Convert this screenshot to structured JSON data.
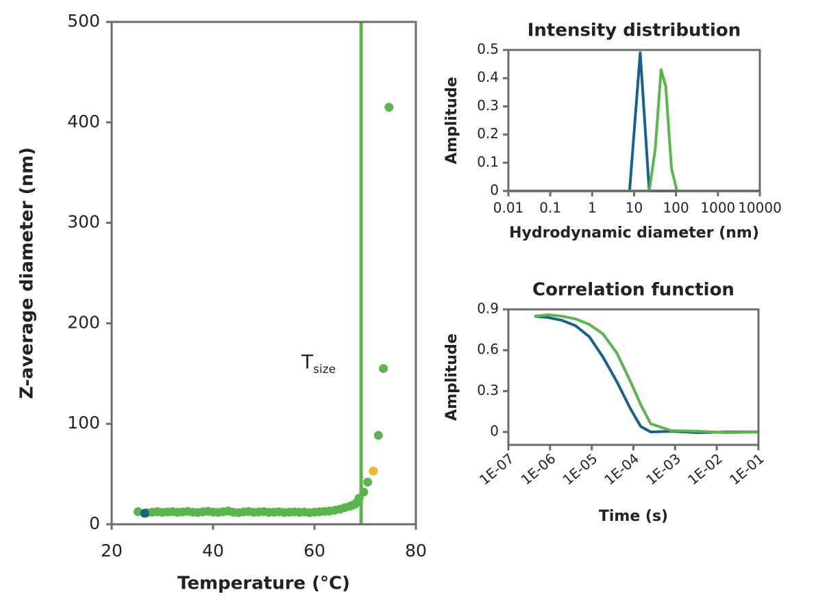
{
  "chart_data": [
    {
      "type": "scatter",
      "xlabel": "Temperature (°C)",
      "ylabel": "Z-average diameter (nm)",
      "xlim": [
        20,
        80
      ],
      "xticks": [
        20,
        40,
        60,
        80
      ],
      "ylim": [
        0,
        500
      ],
      "yticks": [
        0,
        100,
        200,
        300,
        400,
        500
      ],
      "axis_color": "#6b6b6b",
      "series": [
        {
          "color": "#5ab54b",
          "x": [
            25.2,
            27,
            28,
            29,
            30,
            31,
            32,
            33,
            34,
            35,
            36,
            37,
            38,
            39,
            40,
            41,
            42,
            43,
            44,
            45,
            46,
            47,
            48,
            49,
            50,
            51,
            52,
            53,
            54,
            55,
            56,
            57,
            58,
            59,
            60,
            61,
            62,
            63,
            64,
            65,
            66,
            67,
            67.5,
            68,
            68.4,
            68.8,
            69.7,
            70.5,
            72.6,
            73.6,
            74.7
          ],
          "values": [
            12.5,
            11.5,
            12,
            12.5,
            11.8,
            12.2,
            12.6,
            11.9,
            12.3,
            12.8,
            12,
            11.7,
            12.4,
            12.9,
            12.1,
            11.8,
            12.5,
            13.2,
            12,
            11.6,
            12.3,
            12.7,
            11.9,
            12.2,
            12.6,
            11.8,
            12.1,
            12.4,
            11.7,
            12,
            12.3,
            11.9,
            12.2,
            11.6,
            12.1,
            12.4,
            12.8,
            13.2,
            14,
            15,
            16.5,
            18,
            19,
            20,
            22,
            26,
            32,
            42,
            88.5,
            155,
            415
          ]
        },
        {
          "color": "#17618f",
          "x": [
            26.5
          ],
          "values": [
            11
          ]
        },
        {
          "color": "#f2b82c",
          "x": [
            71.6
          ],
          "values": [
            53
          ]
        }
      ],
      "vline": {
        "x": 69.2,
        "color": "#5ab54b"
      },
      "annotation": {
        "text": "T",
        "subscript": "size"
      }
    },
    {
      "type": "line",
      "title": "Intensity distribution",
      "xlabel": "Hydrodynamic diameter (nm)",
      "ylabel": "Amplitude",
      "xlog": true,
      "xlim": [
        0.01,
        10000
      ],
      "xticks": [
        0.01,
        0.1,
        1,
        10,
        100,
        1000,
        10000
      ],
      "ylim": [
        0,
        0.5
      ],
      "yticks": [
        0,
        0.1,
        0.2,
        0.3,
        0.4,
        0.5
      ],
      "axis_color": "#6b6b6b",
      "series": [
        {
          "color": "#17618f",
          "x": [
            0.01,
            7.8,
            14,
            23,
            10000
          ],
          "values": [
            0,
            0,
            0.49,
            0,
            0
          ]
        },
        {
          "color": "#5ab54b",
          "x": [
            0.01,
            23,
            32,
            44,
            57,
            78,
            105,
            10000
          ],
          "values": [
            0,
            0,
            0.15,
            0.43,
            0.37,
            0.08,
            0,
            0
          ]
        }
      ]
    },
    {
      "type": "line",
      "title": "Correlation function",
      "xlabel": "Time (s)",
      "ylabel": "Amplitude",
      "xlog": true,
      "xlim": [
        1e-07,
        0.1
      ],
      "xticks": [
        {
          "value": 1e-07,
          "label": "1E-07"
        },
        {
          "value": 1e-06,
          "label": "1E-06"
        },
        {
          "value": 1e-05,
          "label": "1E-05"
        },
        {
          "value": 0.0001,
          "label": "1E-04"
        },
        {
          "value": 0.001,
          "label": "1E-03"
        },
        {
          "value": 0.01,
          "label": "1E-02"
        },
        {
          "value": 0.1,
          "label": "1E-01"
        }
      ],
      "ylim": [
        -0.095,
        0.9
      ],
      "yticks": [
        0,
        0.3,
        0.6,
        0.9
      ],
      "axis_color": "#6b6b6b",
      "series": [
        {
          "color": "#17618f",
          "x": [
            4.2e-07,
            9e-07,
            1.9e-06,
            4.1e-06,
            8.7e-06,
            1.86e-05,
            4e-05,
            8.5e-05,
            0.00015,
            0.00026,
            0.00081,
            0.0037,
            0.017,
            0.1
          ],
          "values": [
            0.85,
            0.84,
            0.82,
            0.78,
            0.7,
            0.55,
            0.37,
            0.17,
            0.04,
            0,
            0.005,
            -0.005,
            0,
            0
          ]
        },
        {
          "color": "#5ab54b",
          "x": [
            4.2e-07,
            9e-07,
            1.9e-06,
            4.1e-06,
            8.7e-06,
            1.86e-05,
            4e-05,
            8.5e-05,
            0.00015,
            0.00026,
            0.00081,
            0.0037,
            0.017,
            0.1
          ],
          "values": [
            0.85,
            0.86,
            0.85,
            0.83,
            0.79,
            0.72,
            0.58,
            0.37,
            0.2,
            0.06,
            0.01,
            0.005,
            -0.005,
            0
          ]
        }
      ]
    }
  ]
}
